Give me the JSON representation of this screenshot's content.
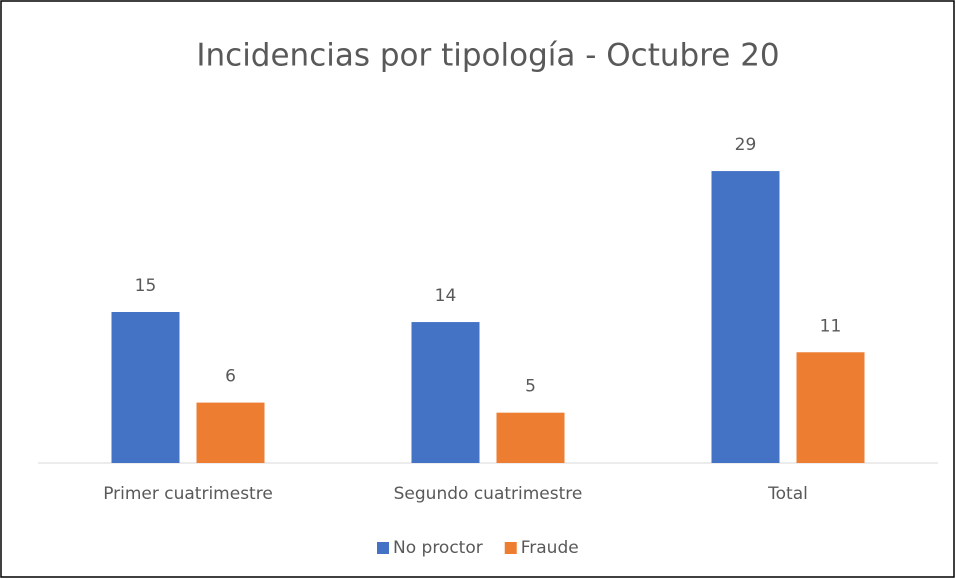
{
  "chart_data": {
    "type": "bar",
    "title": "Incidencias por tipología - Octubre 20",
    "categories": [
      "Primer cuatrimestre",
      "Segundo cuatrimestre",
      "Total"
    ],
    "series": [
      {
        "name": "No proctor",
        "color": "#4472c4",
        "values": [
          15,
          14,
          29
        ]
      },
      {
        "name": "Fraude",
        "color": "#ed7d31",
        "values": [
          6,
          5,
          11
        ]
      }
    ],
    "ylim": [
      0,
      30
    ],
    "legend": "bottom"
  }
}
